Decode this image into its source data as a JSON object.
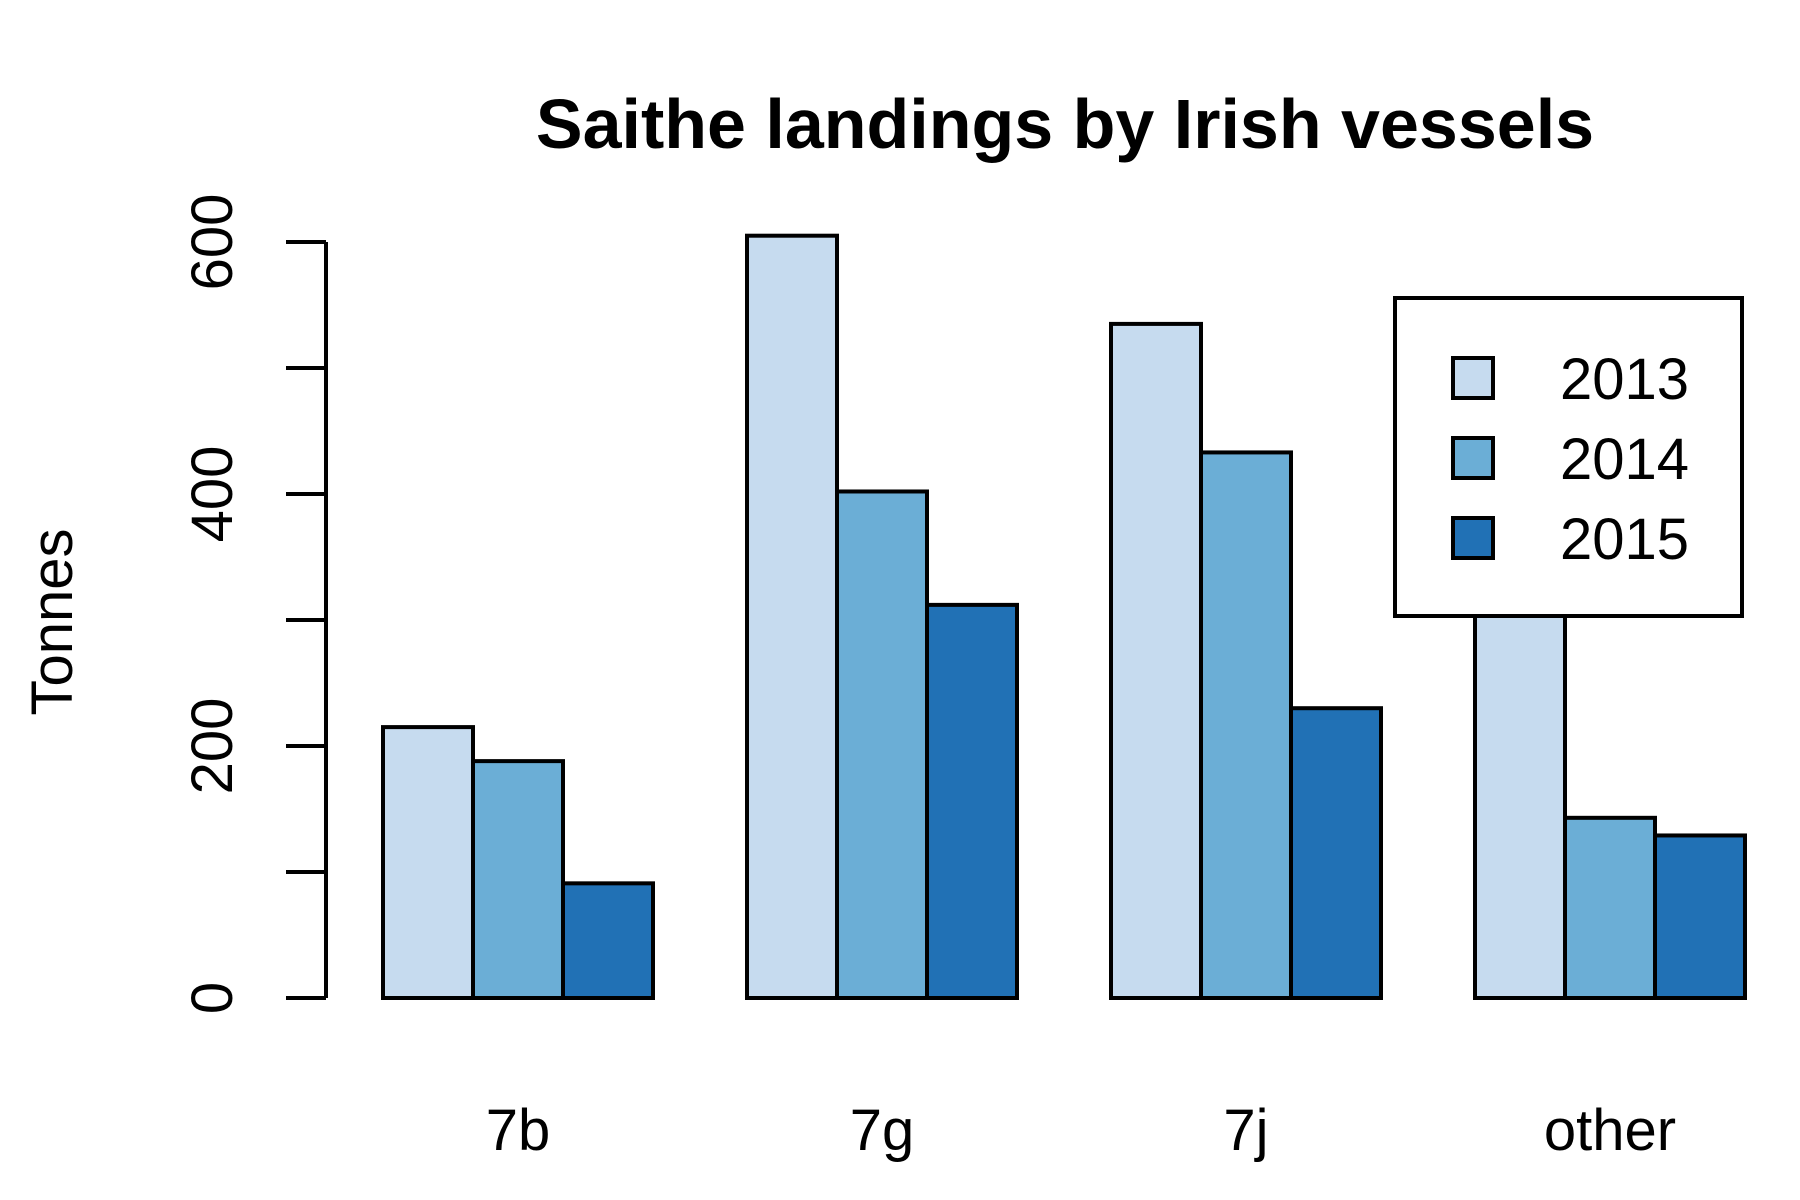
{
  "chart_data": {
    "type": "bar",
    "title": "Saithe landings by Irish vessels",
    "xlabel": "",
    "ylabel": "Tonnes",
    "categories": [
      "7b",
      "7g",
      "7j",
      "other"
    ],
    "series": [
      {
        "name": "2013",
        "values": [
          215,
          605,
          535,
          430
        ],
        "color": "#C6DBEF"
      },
      {
        "name": "2014",
        "values": [
          188,
          402,
          433,
          143
        ],
        "color": "#6BAED6"
      },
      {
        "name": "2015",
        "values": [
          91,
          312,
          230,
          129
        ],
        "color": "#2171B5"
      }
    ],
    "ylim": [
      0,
      600
    ],
    "yticks": [
      0,
      100,
      200,
      300,
      400,
      500,
      600
    ],
    "ytick_labels": [
      "0",
      "",
      "200",
      "",
      "400",
      "",
      "600"
    ],
    "grid": false,
    "legend_position": "top-right"
  }
}
